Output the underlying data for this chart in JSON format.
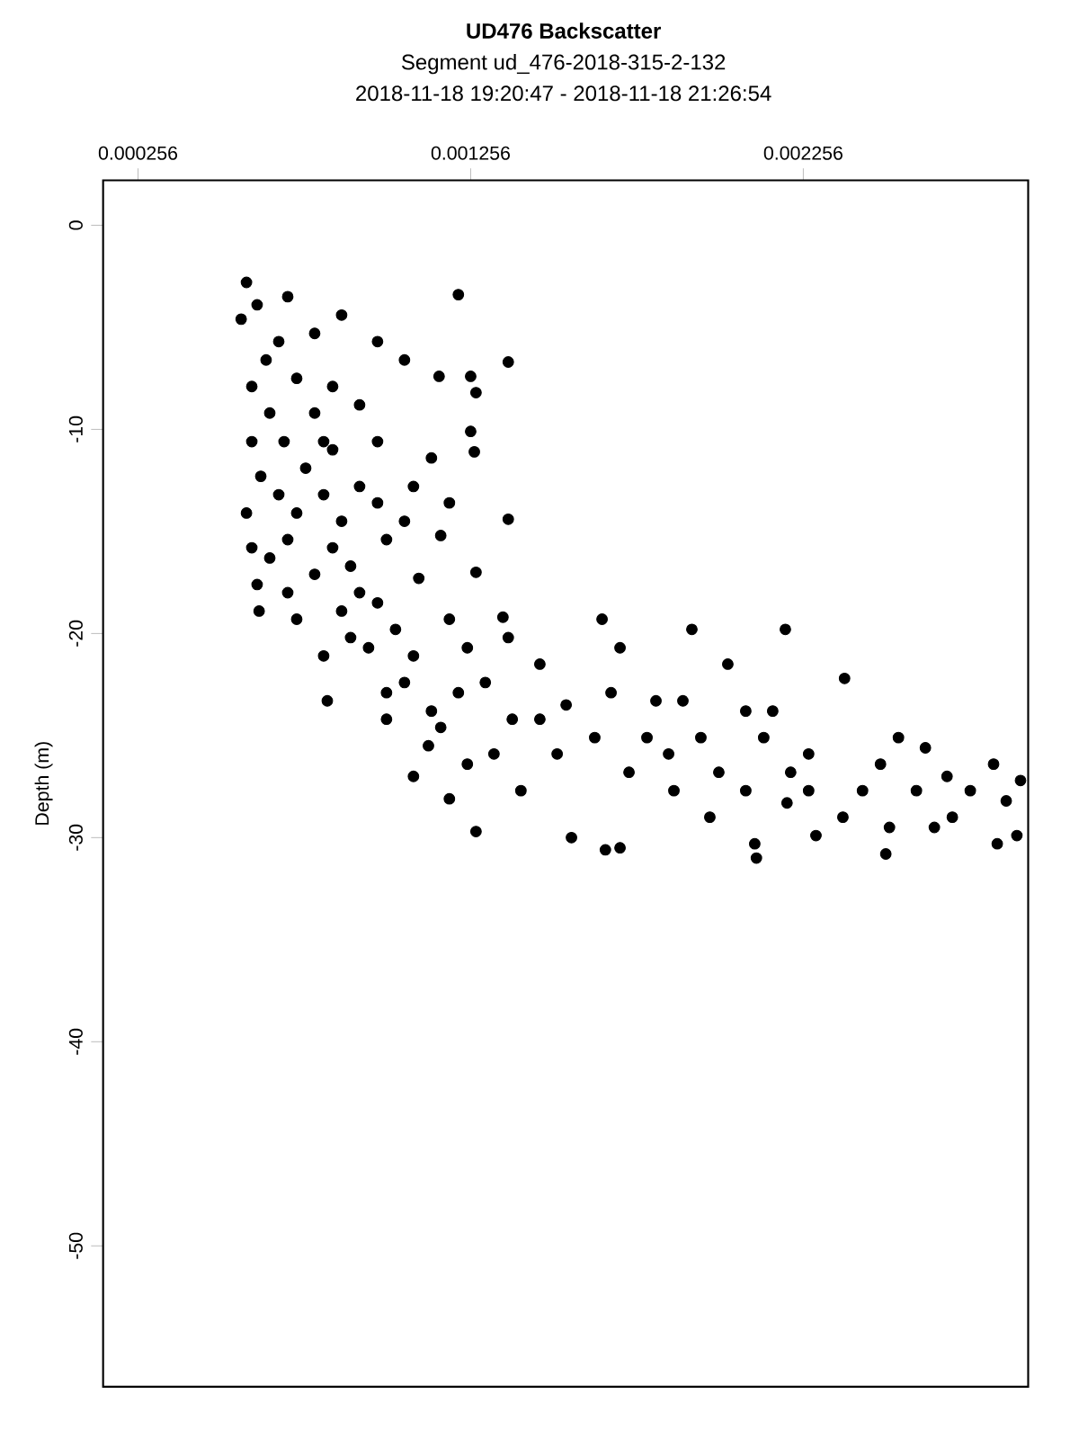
{
  "chart_data": {
    "type": "scatter",
    "title": "UD476 Backscatter",
    "subtitle": "Segment ud_476-2018-315-2-132",
    "annotations": [
      "2018-11-18 19:20:47 - 2018-11-18 21:26:54"
    ],
    "ylabel": "Depth (m)",
    "marker": "circle",
    "color": "#000000",
    "xlim": [
      0.000151,
      0.002932
    ],
    "xticks": [
      0.000256,
      0.001256,
      0.002256
    ],
    "ylim": [
      -56.9,
      2.2
    ],
    "yticks": [
      -50,
      -40,
      -30,
      -20,
      -10,
      0
    ],
    "x": [
      0.000582,
      0.000566,
      0.000614,
      0.000706,
      0.001219,
      0.001369,
      0.000868,
      0.000787,
      0.000976,
      0.001057,
      0.000598,
      0.001256,
      0.001161,
      0.001272,
      0.000652,
      0.000787,
      0.000922,
      0.000598,
      0.001256,
      0.001267,
      0.000625,
      0.00076,
      0.000922,
      0.001084,
      0.001138,
      0.000582,
      0.000733,
      0.000868,
      0.001057,
      0.001369,
      0.000598,
      0.000706,
      0.000841,
      0.001003,
      0.001166,
      0.000614,
      0.000787,
      0.000922,
      0.0011,
      0.001272,
      0.00062,
      0.000733,
      0.000868,
      0.00103,
      0.001192,
      0.001353,
      0.000814,
      0.000949,
      0.001084,
      0.001246,
      0.001369,
      0.000825,
      0.001003,
      0.001138,
      0.0013,
      0.001464,
      0.001003,
      0.001166,
      0.001084,
      0.001192,
      0.001272,
      0.001326,
      0.001407,
      0.001464,
      0.001543,
      0.001516,
      0.001559,
      0.001629,
      0.001651,
      0.001705,
      0.001678,
      0.001732,
      0.001813,
      0.001786,
      0.001661,
      0.001705,
      0.001851,
      0.001921,
      0.001894,
      0.001948,
      0.001867,
      0.001975,
      0.002029,
      0.002002,
      0.002083,
      0.002083,
      0.00211,
      0.002137,
      0.002164,
      0.002218,
      0.002207,
      0.002202,
      0.002272,
      0.002272,
      0.002115,
      0.002294,
      0.002375,
      0.00238,
      0.002434,
      0.002488,
      0.002542,
      0.002515,
      0.002623,
      0.002596,
      0.002688,
      0.00265,
      0.002504,
      0.002704,
      0.002758,
      0.002828,
      0.002866,
      0.002839,
      0.002898,
      0.002909,
      0.000679,
      0.000641,
      0.000733,
      0.000841,
      0.000695,
      0.000841,
      0.000976,
      0.000679,
      0.000814,
      0.000976,
      0.001192,
      0.000652,
      0.000895,
      0.000706,
      0.000976,
      0.000895,
      0.001057,
      0.001219,
      0.001129,
      0.001246,
      0.001381,
      0.000814
    ],
    "values": [
      -2.8,
      -4.6,
      -3.9,
      -3.5,
      -3.4,
      -6.7,
      -4.4,
      -5.3,
      -5.7,
      -6.6,
      -7.9,
      -7.4,
      -7.4,
      -8.2,
      -9.2,
      -9.2,
      -8.8,
      -10.6,
      -10.1,
      -11.1,
      -12.3,
      -11.9,
      -12.8,
      -12.8,
      -11.4,
      -14.1,
      -14.1,
      -14.5,
      -14.5,
      -14.4,
      -15.8,
      -15.4,
      -15.8,
      -15.4,
      -15.2,
      -17.6,
      -17.1,
      -18.0,
      -17.3,
      -17.0,
      -18.9,
      -19.3,
      -18.9,
      -19.8,
      -19.3,
      -19.2,
      -21.1,
      -20.7,
      -21.1,
      -20.7,
      -20.2,
      -23.3,
      -22.9,
      -23.8,
      -22.4,
      -21.5,
      -24.2,
      -24.6,
      -27.0,
      -28.1,
      -29.7,
      -25.9,
      -27.7,
      -24.2,
      -23.5,
      -25.9,
      -30.0,
      -25.1,
      -19.3,
      -20.7,
      -22.9,
      -26.8,
      -23.3,
      -25.1,
      -30.6,
      -30.5,
      -25.9,
      -19.8,
      -23.3,
      -25.1,
      -27.7,
      -29.0,
      -21.5,
      -26.8,
      -23.8,
      -27.7,
      -30.3,
      -25.1,
      -23.8,
      -26.8,
      -28.3,
      -19.8,
      -25.9,
      -27.7,
      -31.0,
      -29.9,
      -29.0,
      -22.2,
      -27.7,
      -26.4,
      -25.1,
      -29.5,
      -25.6,
      -27.7,
      -27.0,
      -29.5,
      -30.8,
      -29.0,
      -27.7,
      -26.4,
      -28.2,
      -30.3,
      -29.9,
      -27.2,
      -5.7,
      -6.6,
      -7.5,
      -7.9,
      -10.6,
      -11.0,
      -10.6,
      -13.2,
      -13.2,
      -13.6,
      -13.6,
      -16.3,
      -16.7,
      -18.0,
      -18.5,
      -20.2,
      -22.4,
      -22.9,
      -25.5,
      -26.4,
      -24.2,
      -10.6
    ]
  }
}
